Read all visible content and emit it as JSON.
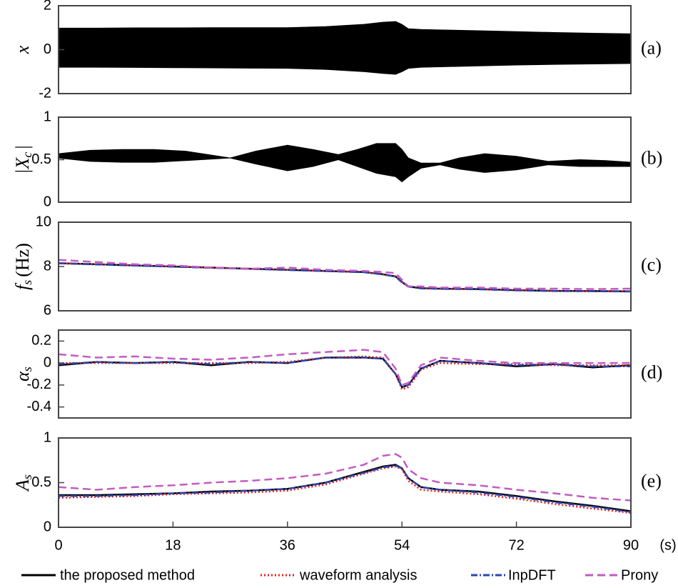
{
  "chart_data": [
    {
      "type": "area",
      "ylabel": "x",
      "panel_label": "(a)",
      "color": "#000000",
      "x": [
        0,
        6,
        12,
        18,
        24,
        30,
        36,
        42,
        48,
        51,
        53,
        54,
        55,
        57,
        60,
        66,
        72,
        78,
        84,
        90
      ],
      "upper": [
        0.98,
        0.98,
        0.99,
        0.99,
        1.0,
        1.0,
        1.0,
        1.05,
        1.15,
        1.25,
        1.28,
        1.15,
        0.95,
        0.92,
        0.9,
        0.86,
        0.82,
        0.78,
        0.75,
        0.72
      ],
      "lower": [
        -0.8,
        -0.8,
        -0.81,
        -0.82,
        -0.83,
        -0.84,
        -0.85,
        -0.9,
        -1.0,
        -1.08,
        -1.12,
        -1.0,
        -0.85,
        -0.8,
        -0.78,
        -0.74,
        -0.7,
        -0.67,
        -0.65,
        -0.63
      ],
      "xlim": [
        0,
        90
      ],
      "ylim": [
        -2,
        2
      ],
      "yticks": [
        -2,
        0,
        2
      ]
    },
    {
      "type": "area",
      "ylabel": "|X",
      "ylabel_sub": "c",
      "ylabel_end": "|",
      "panel_label": "(b)",
      "color": "#000000",
      "x": [
        0,
        5,
        10,
        15,
        20,
        27,
        31,
        36,
        40,
        44,
        47,
        50,
        53,
        54,
        55,
        57,
        60,
        63,
        67,
        72,
        77,
        82,
        86,
        90
      ],
      "upper": [
        0.57,
        0.61,
        0.62,
        0.62,
        0.6,
        0.52,
        0.6,
        0.67,
        0.62,
        0.56,
        0.62,
        0.69,
        0.69,
        0.62,
        0.52,
        0.46,
        0.46,
        0.52,
        0.57,
        0.54,
        0.48,
        0.5,
        0.49,
        0.47
      ],
      "lower": [
        0.52,
        0.48,
        0.47,
        0.47,
        0.49,
        0.52,
        0.45,
        0.37,
        0.42,
        0.5,
        0.42,
        0.34,
        0.3,
        0.24,
        0.3,
        0.4,
        0.44,
        0.39,
        0.35,
        0.38,
        0.44,
        0.42,
        0.42,
        0.42
      ],
      "xlim": [
        0,
        90
      ],
      "ylim": [
        0,
        1
      ],
      "yticks": [
        0,
        0.5,
        1
      ]
    },
    {
      "type": "line",
      "ylabel": "f",
      "ylabel_sub": "s",
      "ylabel_end": "(Hz)",
      "panel_label": "(c)",
      "x": [
        0,
        6,
        12,
        18,
        24,
        30,
        36,
        42,
        48,
        51,
        53,
        54,
        55,
        57,
        60,
        66,
        72,
        78,
        84,
        90
      ],
      "xlim": [
        0,
        90
      ],
      "ylim": [
        6,
        10
      ],
      "yticks": [
        6,
        8,
        10
      ],
      "series": [
        {
          "color": "#000000",
          "linestyle": "solid",
          "values": [
            8.15,
            8.1,
            8.05,
            8.0,
            7.95,
            7.9,
            7.85,
            7.8,
            7.75,
            7.65,
            7.55,
            7.3,
            7.1,
            7.02,
            7.0,
            6.98,
            6.93,
            6.9,
            6.89,
            6.88
          ]
        },
        {
          "color": "#e8211c",
          "linestyle": "dotted",
          "values": [
            8.15,
            8.1,
            8.05,
            8.0,
            7.95,
            7.9,
            7.85,
            7.8,
            7.75,
            7.65,
            7.55,
            7.3,
            7.1,
            7.02,
            7.0,
            6.98,
            6.93,
            6.9,
            6.89,
            6.88
          ]
        },
        {
          "color": "#2b46b0",
          "linestyle": "dashdot",
          "values": [
            8.14,
            8.09,
            8.04,
            7.99,
            7.94,
            7.89,
            7.84,
            7.79,
            7.74,
            7.64,
            7.54,
            7.28,
            7.09,
            7.01,
            6.99,
            6.97,
            6.92,
            6.89,
            6.88,
            6.87
          ]
        },
        {
          "color": "#c35bc1",
          "linestyle": "dashed",
          "values": [
            8.3,
            8.2,
            8.1,
            8.05,
            7.95,
            7.9,
            7.95,
            7.85,
            7.8,
            7.75,
            7.7,
            7.4,
            7.1,
            7.1,
            7.05,
            7.05,
            7.0,
            7.0,
            6.98,
            7.0
          ]
        }
      ]
    },
    {
      "type": "line",
      "ylabel": "α",
      "ylabel_sub": "s",
      "panel_label": "(d)",
      "x": [
        0,
        6,
        12,
        18,
        24,
        30,
        36,
        42,
        48,
        51,
        53,
        54,
        55,
        57,
        60,
        66,
        72,
        78,
        84,
        90
      ],
      "xlim": [
        0,
        90
      ],
      "ylim": [
        -0.5,
        0.3
      ],
      "yticks": [
        -0.4,
        -0.2,
        0,
        0.2
      ],
      "series": [
        {
          "color": "#000000",
          "linestyle": "solid",
          "values": [
            -0.02,
            0.01,
            0.0,
            0.01,
            -0.02,
            0.01,
            0.0,
            0.05,
            0.05,
            0.04,
            -0.1,
            -0.22,
            -0.2,
            -0.05,
            0.02,
            0.0,
            -0.03,
            -0.01,
            -0.04,
            -0.02
          ]
        },
        {
          "color": "#e8211c",
          "linestyle": "dotted",
          "values": [
            0.0,
            0.0,
            0.0,
            0.0,
            0.0,
            0.0,
            0.01,
            0.05,
            0.06,
            0.05,
            -0.1,
            -0.24,
            -0.22,
            -0.06,
            0.0,
            -0.01,
            -0.01,
            -0.02,
            -0.02,
            -0.02
          ]
        },
        {
          "color": "#2b46b0",
          "linestyle": "dashdot",
          "values": [
            -0.01,
            0.01,
            0.0,
            0.01,
            -0.01,
            0.01,
            0.0,
            0.05,
            0.05,
            0.04,
            -0.1,
            -0.22,
            -0.2,
            -0.05,
            0.02,
            0.0,
            -0.02,
            -0.01,
            -0.03,
            -0.03
          ]
        },
        {
          "color": "#c35bc1",
          "linestyle": "dashed",
          "values": [
            0.08,
            0.05,
            0.06,
            0.04,
            0.03,
            0.05,
            0.08,
            0.1,
            0.12,
            0.1,
            -0.05,
            -0.2,
            -0.18,
            -0.02,
            0.05,
            0.02,
            0.0,
            0.0,
            0.0,
            0.0
          ]
        }
      ]
    },
    {
      "type": "line",
      "ylabel": "A",
      "ylabel_sub": "s",
      "panel_label": "(e)",
      "xlabel": "(s)",
      "x": [
        0,
        6,
        12,
        18,
        24,
        30,
        36,
        42,
        48,
        51,
        53,
        54,
        55,
        57,
        60,
        66,
        72,
        78,
        84,
        90
      ],
      "xlim": [
        0,
        90
      ],
      "xticks": [
        0,
        18,
        36,
        54,
        72,
        90
      ],
      "ylim": [
        0,
        1
      ],
      "yticks": [
        0,
        0.5,
        1
      ],
      "series": [
        {
          "name": "the proposed method",
          "color": "#000000",
          "linestyle": "solid",
          "values": [
            0.36,
            0.36,
            0.37,
            0.38,
            0.4,
            0.41,
            0.43,
            0.5,
            0.62,
            0.68,
            0.7,
            0.66,
            0.55,
            0.45,
            0.42,
            0.4,
            0.35,
            0.29,
            0.24,
            0.18
          ]
        },
        {
          "name": "waveform analysis",
          "color": "#e8211c",
          "linestyle": "dotted",
          "values": [
            0.33,
            0.34,
            0.35,
            0.37,
            0.38,
            0.39,
            0.41,
            0.48,
            0.6,
            0.66,
            0.68,
            0.65,
            0.52,
            0.42,
            0.4,
            0.37,
            0.32,
            0.26,
            0.21,
            0.16
          ]
        },
        {
          "name": "InpDFT",
          "color": "#2b46b0",
          "linestyle": "dashdot",
          "values": [
            0.35,
            0.35,
            0.36,
            0.38,
            0.39,
            0.41,
            0.43,
            0.5,
            0.61,
            0.67,
            0.69,
            0.66,
            0.55,
            0.45,
            0.42,
            0.39,
            0.34,
            0.28,
            0.23,
            0.17
          ]
        },
        {
          "name": "Prony",
          "color": "#c35bc1",
          "linestyle": "dashed",
          "values": [
            0.45,
            0.42,
            0.45,
            0.47,
            0.5,
            0.52,
            0.55,
            0.6,
            0.7,
            0.8,
            0.82,
            0.78,
            0.65,
            0.55,
            0.5,
            0.47,
            0.42,
            0.38,
            0.33,
            0.3
          ]
        }
      ]
    }
  ]
}
